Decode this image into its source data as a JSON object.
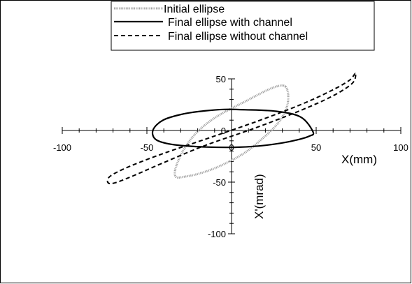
{
  "chart_data": {
    "type": "line",
    "title": "",
    "xlabel": "X(mm)",
    "ylabel": "X'(mrad)",
    "xlim": [
      -100,
      100
    ],
    "ylim": [
      -100,
      50
    ],
    "x_ticks": [
      -100,
      -50,
      0,
      50,
      100
    ],
    "y_ticks": [
      -100,
      -50,
      0,
      50
    ],
    "x_tick_labels": [
      "-100",
      "-50",
      "0",
      "50",
      "100"
    ],
    "y_tick_labels": [
      "-100",
      "-50",
      "0",
      "50"
    ],
    "grid": false,
    "legend_placement": "top-center",
    "series": [
      {
        "name": "Initial ellipse",
        "style": "dotted-gray",
        "color": "#a0a0a0",
        "x": [
          31.9,
          33.5,
          32.5,
          27.7,
          18.9,
          7.2,
          -7.3,
          -19.0,
          -27.7,
          -32.5,
          -33.5,
          -31.9,
          -27.9,
          -20.6,
          -8.9,
          8.9,
          20.6,
          27.9,
          31.9
        ],
        "y": [
          42.4,
          34.1,
          21.9,
          7.6,
          -6.9,
          -22.2,
          -34.7,
          -41.7,
          -44.7,
          -45.3,
          -40.2,
          -31.1,
          -17.6,
          -2.0,
          13.3,
          28.8,
          38.7,
          43.2,
          42.4
        ]
      },
      {
        "name": "Final ellipse with channel",
        "style": "solid",
        "color": "#000000",
        "x": [
          48.2,
          45.9,
          39.0,
          29.1,
          15.6,
          1.6,
          -14.9,
          -28.1,
          -38.6,
          -45.3,
          -46.3,
          -40.2,
          -28.5,
          -15.9,
          -4.3,
          8.1,
          26.4,
          40.9,
          48.2
        ],
        "y": [
          -1.5,
          -5.5,
          -9.0,
          -12.3,
          -15.1,
          -16.3,
          -16.0,
          -14.8,
          -12.4,
          -8.0,
          0.9,
          10.2,
          16.0,
          19.0,
          20.4,
          20.1,
          18.6,
          13.0,
          -1.5
        ]
      },
      {
        "name": "Final ellipse without channel",
        "style": "dashed",
        "color": "#000000",
        "x": [
          73.1,
          69.3,
          58.1,
          40.5,
          15.6,
          -13.3,
          -39.3,
          -59.4,
          -71.4,
          -73.1,
          -69.3,
          -58.1,
          -40.5,
          -15.6,
          13.3,
          39.3,
          59.4,
          71.4,
          73.1
        ],
        "y": [
          55.1,
          48.2,
          37.9,
          24.8,
          9.2,
          -7.2,
          -21.7,
          -34.2,
          -43.9,
          -50.2,
          -50.9,
          -43.9,
          -31.4,
          -14.5,
          2.0,
          18.4,
          33.1,
          45.8,
          55.1
        ]
      }
    ]
  }
}
